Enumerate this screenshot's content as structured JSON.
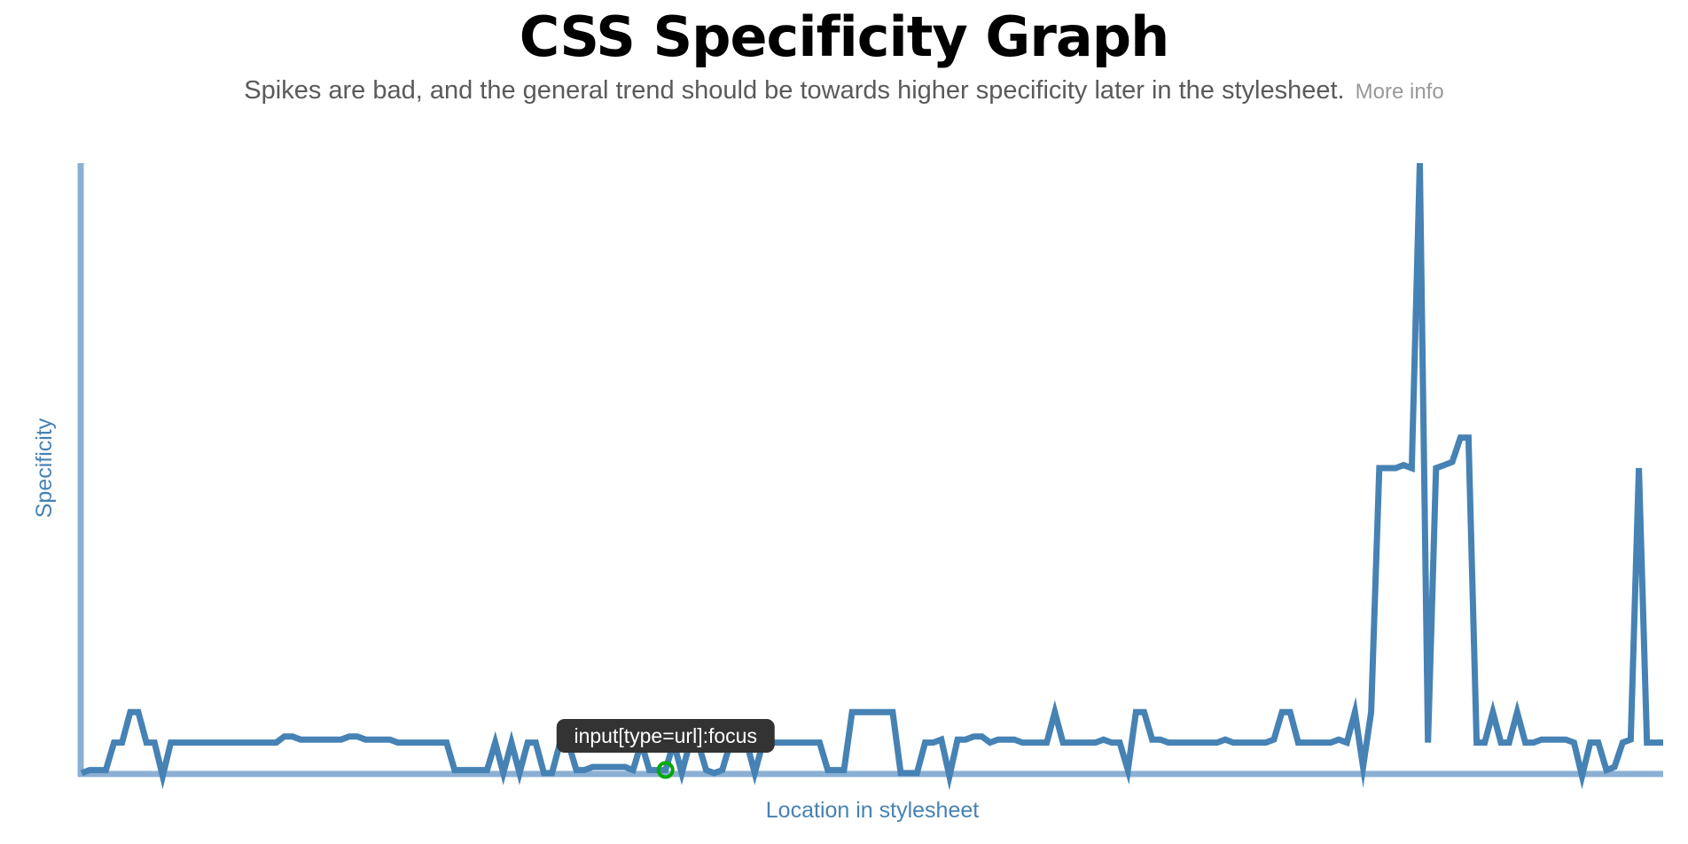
{
  "page": {
    "title": "CSS Specificity Graph",
    "subtitle": "Spikes are bad, and the general trend should be towards higher specificity later in the stylesheet.",
    "more_info_label": "More info"
  },
  "colors": {
    "line": "#4682b4",
    "axis": "#8cb0d4",
    "axis_label": "#4682b4",
    "highlight": "#00aa00",
    "tooltip_bg": "#333333"
  },
  "tooltip": {
    "label": "input[type=url]:focus",
    "point_index": 72
  },
  "chart_data": {
    "type": "line",
    "title": "",
    "xlabel": "Location in stylesheet",
    "ylabel": "Specificity",
    "grid": false,
    "xlim": [
      0,
      147
    ],
    "ylim": [
      0,
      20
    ],
    "series": [
      {
        "values": [
          0,
          0.1,
          0.1,
          0.1,
          1,
          1,
          2,
          2,
          1,
          1,
          -0.1,
          1,
          1,
          1,
          1,
          1,
          1,
          1,
          1,
          1,
          1,
          1,
          1,
          1,
          1,
          1.2,
          1.2,
          1.1,
          1.1,
          1.1,
          1.1,
          1.1,
          1.1,
          1.2,
          1.2,
          1.1,
          1.1,
          1.1,
          1.1,
          1,
          1,
          1,
          1,
          1,
          1,
          1,
          0.1,
          0.1,
          0.1,
          0.1,
          0.1,
          1,
          0,
          1,
          0,
          1,
          1,
          0,
          0,
          1,
          1,
          0.1,
          0.1,
          0.2,
          0.2,
          0.2,
          0.2,
          0.2,
          0.1,
          1,
          0.1,
          0.1,
          0.1,
          1,
          0,
          1,
          1,
          0.1,
          0,
          0.1,
          1,
          1,
          1,
          0,
          1,
          1,
          1,
          1,
          1,
          1,
          1,
          1,
          0.1,
          0.1,
          0.1,
          2,
          2,
          2,
          2,
          2,
          2,
          0,
          0,
          0,
          1,
          1,
          1.1,
          -0.1,
          1.1,
          1.1,
          1.2,
          1.2,
          1.0,
          1.1,
          1.1,
          1.1,
          1.0,
          1.0,
          1.0,
          1.0,
          2,
          1,
          1,
          1,
          1,
          1,
          1.1,
          1,
          1,
          0.1,
          2,
          2,
          1.1,
          1.1,
          1,
          1,
          1,
          1,
          1,
          1,
          1,
          1.1,
          1,
          1,
          1,
          1,
          1,
          1.1,
          2,
          2,
          1,
          1,
          1,
          1,
          1,
          1.1,
          1.0,
          2,
          0.2,
          2,
          10,
          10,
          10,
          10.1,
          10,
          20,
          1,
          10,
          10.1,
          10.2,
          11,
          11,
          1,
          1,
          2,
          1,
          1,
          2,
          1,
          1,
          1.1,
          1.1,
          1.1,
          1.1,
          1,
          -0.1,
          1,
          1,
          0.1,
          0.2,
          1,
          1.1,
          10,
          1,
          1,
          1
        ]
      }
    ]
  }
}
